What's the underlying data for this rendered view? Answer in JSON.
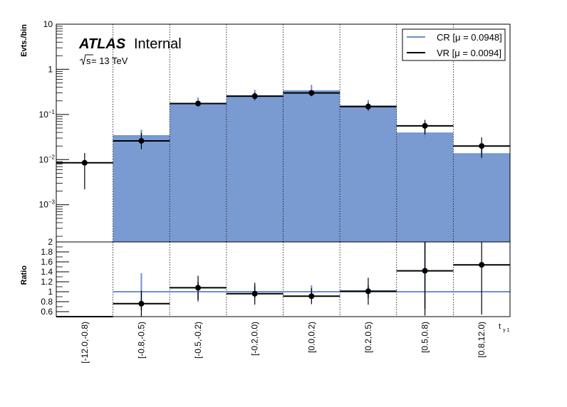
{
  "chart_data": {
    "type": "bar",
    "categories": [
      "[-12.0,-0.8)",
      "[-0.8,-0.5)",
      "[-0.5,-0.2)",
      "[-0.2,0.0)",
      "[0.0,0.2)",
      "[0.2,0.5)",
      "[0.5,0.8)",
      "[0.8,12.0)"
    ],
    "xlabel": "t",
    "xlabel_sub": "γ 1",
    "ylabel": "Evts./bin",
    "ratio_ylabel": "Ratio",
    "yscale": "log",
    "ylim": [
      0.00015,
      10
    ],
    "ratio_ylim": [
      0.5,
      2.0
    ],
    "y_ticks": [
      {
        "v": 10,
        "base": "10",
        "exp": ""
      },
      {
        "v": 1,
        "base": "1",
        "exp": ""
      },
      {
        "v": 0.1,
        "base": "10",
        "exp": "−1"
      },
      {
        "v": 0.01,
        "base": "10",
        "exp": "−2"
      },
      {
        "v": 0.001,
        "base": "10",
        "exp": "−3"
      }
    ],
    "ratio_ticks": [
      "0.6",
      "0.8",
      "1",
      "1.2",
      "1.4",
      "1.6",
      "1.8",
      "2"
    ],
    "series": [
      {
        "name": "CR [μ = 0.0948]",
        "style": "filled-hist",
        "color": "#7a9ad2",
        "line_color": "#6f8fcc",
        "values": [
          0,
          0.034,
          0.175,
          0.26,
          0.335,
          0.155,
          0.039,
          0.0135
        ]
      },
      {
        "name": "VR [μ = 0.0094]",
        "style": "step-points",
        "color": "#000000",
        "values": [
          0.0085,
          0.026,
          0.175,
          0.255,
          0.3,
          0.15,
          0.056,
          0.02
        ],
        "err_low": [
          0.0063,
          0.009,
          0.022,
          0.045,
          0.045,
          0.028,
          0.02,
          0.009
        ],
        "err_high": [
          0.0055,
          0.013,
          0.024,
          0.05,
          0.045,
          0.03,
          0.02,
          0.011
        ]
      }
    ],
    "ratio": {
      "values": [
        null,
        0.76,
        1.08,
        0.96,
        0.91,
        1.01,
        1.42,
        1.54
      ],
      "err_low": [
        null,
        0.26,
        0.24,
        0.22,
        0.16,
        0.27,
        0.9,
        1.0
      ],
      "err_high": [
        null,
        0.26,
        0.24,
        0.22,
        0.16,
        0.27,
        0.6,
        0.5
      ],
      "cr_band_low": [
        null,
        0.63,
        0.8,
        0.88,
        0.87,
        0.87,
        0.66,
        null
      ],
      "cr_band_high": [
        null,
        1.37,
        1.2,
        1.12,
        1.13,
        1.13,
        null,
        null
      ]
    },
    "legend_position": "top-right",
    "grid": "vertical dotted at bin edges",
    "label": {
      "atlas": "ATLAS",
      "status": "Internal",
      "energy_prefix": "s",
      "energy_suffix": " = 13 TeV"
    }
  }
}
